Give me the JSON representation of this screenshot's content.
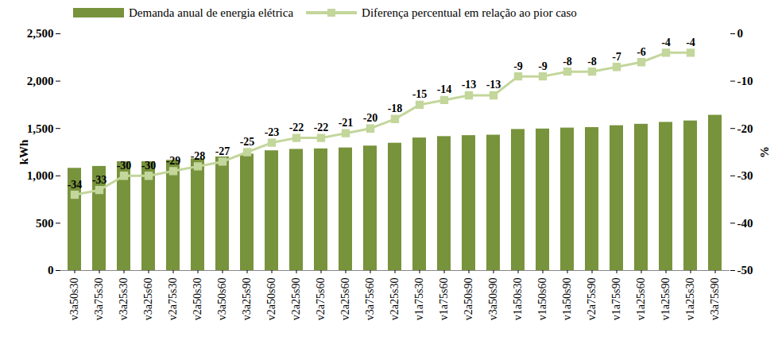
{
  "chart_data": {
    "type": "bar",
    "categories": [
      "v3a50s30",
      "v3a75s30",
      "v3a25s30",
      "v3a25s60",
      "v2a75s30",
      "v2a50s30",
      "v3a50s60",
      "v3a25s90",
      "v2a50s60",
      "v2a25s90",
      "v2a75s60",
      "v2a25s60",
      "v3a75s60",
      "v2a25s30",
      "v1a75s30",
      "v1a75s60",
      "v2a50s90",
      "v3a50s90",
      "v1a50s30",
      "v1a50s60",
      "v1a50s90",
      "v2a75s90",
      "v1a75s90",
      "v1a25s60",
      "v1a25s90",
      "v1a25s30",
      "v3a75s90"
    ],
    "series": [
      {
        "name": "Demanda anual de energia elétrica",
        "type": "bar",
        "color": "#77933c",
        "values": [
          1080,
          1100,
          1150,
          1150,
          1165,
          1180,
          1200,
          1230,
          1265,
          1280,
          1285,
          1295,
          1315,
          1345,
          1400,
          1415,
          1425,
          1430,
          1490,
          1495,
          1505,
          1510,
          1530,
          1545,
          1565,
          1580,
          1640
        ]
      },
      {
        "name": "Diferença percentual em relação ao pior caso",
        "type": "line",
        "axis": "y2",
        "color": "#c3d69b",
        "marker": "square",
        "data_labels": true,
        "values": [
          -34,
          -33,
          -30,
          -30,
          -29,
          -28,
          -27,
          -25,
          -23,
          -22,
          -22,
          -21,
          -20,
          -18,
          -15,
          -14,
          -13,
          -13,
          -9,
          -9,
          -8,
          -8,
          -7,
          -6,
          -4,
          -4,
          null
        ]
      }
    ],
    "y_label": "kWh",
    "y2_label": "%",
    "ylim": [
      0,
      2500
    ],
    "yticks": [
      0,
      500,
      1000,
      1500,
      2000,
      2500
    ],
    "y2lim": [
      -50,
      0
    ],
    "y2ticks": [
      -50,
      -40,
      -30,
      -20,
      -10,
      0
    ],
    "legend": "top",
    "grid": false
  }
}
